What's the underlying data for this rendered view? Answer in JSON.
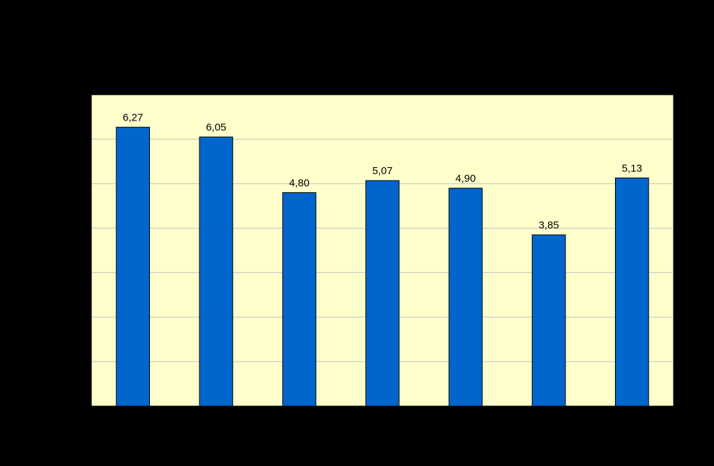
{
  "chart_data": {
    "type": "bar",
    "categories": [
      "",
      "",
      "",
      "",
      "",
      "",
      ""
    ],
    "values": [
      6.27,
      6.05,
      4.8,
      5.07,
      4.9,
      3.85,
      5.13
    ],
    "data_labels": [
      "6,27",
      "6,05",
      "4,80",
      "5,07",
      "4,90",
      "3,85",
      "5,13"
    ],
    "title": "",
    "xlabel": "",
    "ylabel": "",
    "ylim": [
      0,
      7
    ],
    "grid": true,
    "colors": {
      "page_background": "#000000",
      "plot_background": "#FFFFCC",
      "bar": "#0066CC",
      "bar_outline": "#000000",
      "gridline": "#C0C0C0",
      "axis": "#000000",
      "label_text": "#000000"
    }
  }
}
